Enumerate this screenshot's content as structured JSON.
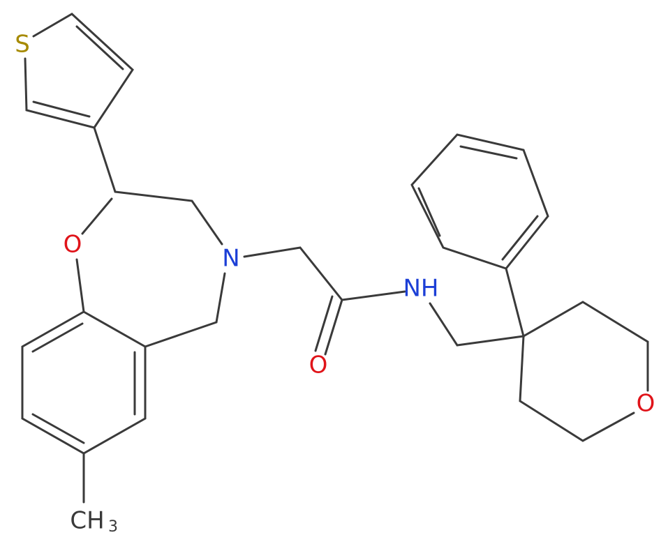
{
  "atoms": [
    {
      "label": "S"
    },
    {
      "label": "O"
    },
    {
      "label": "N"
    },
    {
      "label": "O"
    },
    {
      "label": "NH"
    },
    {
      "label": "O"
    },
    {
      "label": "CH",
      "subscript": "3"
    }
  ]
}
